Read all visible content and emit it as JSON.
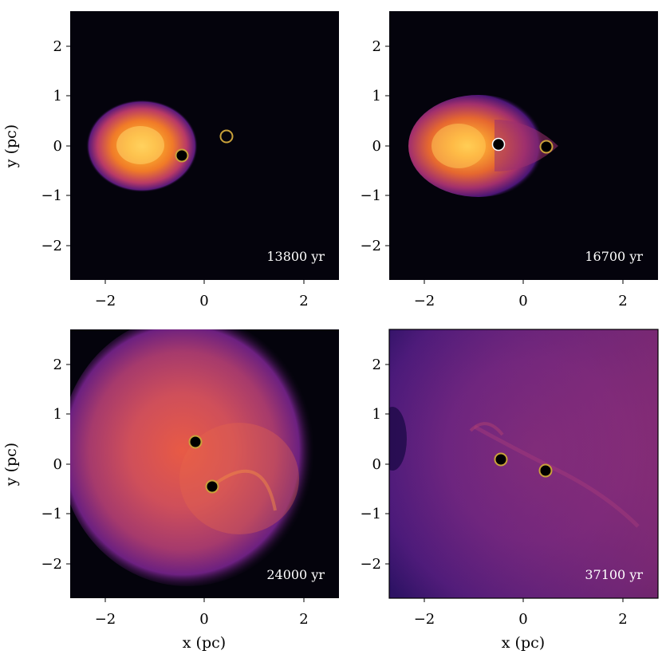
{
  "chart_data": [
    {
      "type": "heatmap",
      "panel": "top-left",
      "time_label": "13800 yr",
      "xlim": [
        -2.7,
        2.7
      ],
      "ylim": [
        -2.7,
        2.7
      ],
      "xticks": [
        -2,
        0,
        2
      ],
      "yticks": [
        -2,
        -1,
        0,
        1,
        2
      ],
      "xlabel": "",
      "ylabel": "y (pc)",
      "stars": [
        {
          "x": -0.45,
          "y": -0.2,
          "fill": "#000000"
        },
        {
          "x": 0.43,
          "y": 0.19,
          "fill": "none"
        }
      ],
      "nebula": {
        "cx": -1.25,
        "cy": 0.0,
        "rx": 1.15,
        "ry": 0.93,
        "intensity": "high",
        "extent": "compact"
      }
    },
    {
      "type": "heatmap",
      "panel": "top-right",
      "time_label": "16700 yr",
      "xlim": [
        -2.7,
        2.7
      ],
      "ylim": [
        -2.7,
        2.7
      ],
      "xticks": [
        -2,
        0,
        2
      ],
      "yticks": [
        -2,
        -1,
        0,
        1,
        2
      ],
      "xlabel": "",
      "ylabel": "",
      "stars": [
        {
          "x": -0.48,
          "y": 0.03,
          "fill": "#000000"
        },
        {
          "x": 0.47,
          "y": -0.02,
          "fill": "#000000"
        }
      ],
      "nebula": {
        "cx": -0.85,
        "cy": 0.0,
        "rx": 1.4,
        "ry": 1.0,
        "intensity": "high",
        "extent": "medium"
      }
    },
    {
      "type": "heatmap",
      "panel": "bottom-left",
      "time_label": "24000 yr",
      "xlim": [
        -2.7,
        2.7
      ],
      "ylim": [
        -2.7,
        2.7
      ],
      "xticks": [
        -2,
        0,
        2
      ],
      "yticks": [
        -2,
        -1,
        0,
        1,
        2
      ],
      "xlabel": "x (pc)",
      "ylabel": "y (pc)",
      "stars": [
        {
          "x": -0.2,
          "y": 0.45,
          "fill": "#000000"
        },
        {
          "x": 0.15,
          "y": -0.45,
          "fill": "#000000"
        }
      ],
      "nebula": {
        "cx": -0.5,
        "cy": 0.1,
        "rx": 2.1,
        "ry": 2.4,
        "intensity": "medium",
        "extent": "large"
      }
    },
    {
      "type": "heatmap",
      "panel": "bottom-right",
      "time_label": "37100 yr",
      "xlim": [
        -2.7,
        2.7
      ],
      "ylim": [
        -2.7,
        2.7
      ],
      "xticks": [
        -2,
        0,
        2
      ],
      "yticks": [
        -2,
        -1,
        0,
        1,
        2
      ],
      "xlabel": "x (pc)",
      "ylabel": "",
      "stars": [
        {
          "x": -0.45,
          "y": 0.1,
          "fill": "#000000"
        },
        {
          "x": 0.45,
          "y": -0.13,
          "fill": "#000000"
        }
      ],
      "nebula": {
        "cx": 0.0,
        "cy": 0.0,
        "rx": 3.5,
        "ry": 3.5,
        "intensity": "diffuse",
        "extent": "full"
      }
    }
  ],
  "colors": {
    "background": "#04030c",
    "star_fill": "#000000",
    "star_ring": "#c9a13a",
    "colormap": "inferno"
  }
}
